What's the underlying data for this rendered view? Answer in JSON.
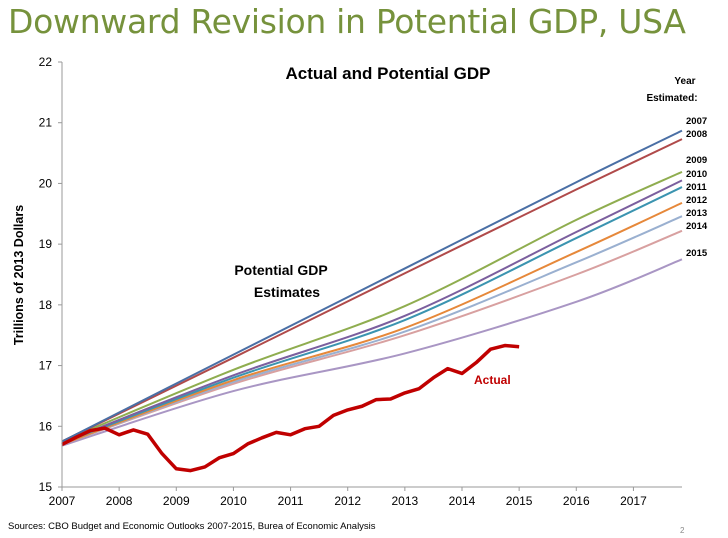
{
  "slide": {
    "title": "Downward Revision in Potential GDP, USA",
    "sources": "Sources:  CBO Budget and Economic Outlooks 2007-2015, Burea of Economic Analysis",
    "page_number": "2"
  },
  "chart_data": {
    "type": "line",
    "title": "Actual and Potential GDP",
    "ylabel": "Trillions of 2013 Dollars",
    "xlabel": "",
    "xlim": [
      2007,
      2017.85
    ],
    "ylim": [
      15,
      22
    ],
    "x_ticks": [
      "2007",
      "2008",
      "2009",
      "2010",
      "2011",
      "2012",
      "2013",
      "2014",
      "2015",
      "2016",
      "2017"
    ],
    "y_ticks": [
      "15",
      "16",
      "17",
      "18",
      "19",
      "20",
      "21",
      "22"
    ],
    "legend_header": [
      "Year",
      "Estimated:"
    ],
    "annotation_potential": [
      "Potential GDP",
      "Estimates"
    ],
    "series": [
      {
        "name": "2007",
        "color": "#4a6fa5",
        "x": [
          2007,
          2010,
          2013,
          2016,
          2017.85
        ],
        "y": [
          15.75,
          17.18,
          18.6,
          20.02,
          20.87
        ]
      },
      {
        "name": "2008",
        "color": "#b04a4a",
        "x": [
          2007,
          2010,
          2013,
          2016,
          2017.85
        ],
        "y": [
          15.75,
          17.13,
          18.52,
          19.9,
          20.73
        ]
      },
      {
        "name": "2009",
        "color": "#8fad4f",
        "x": [
          2007,
          2010,
          2013,
          2016,
          2017.85
        ],
        "y": [
          15.75,
          16.93,
          17.98,
          19.4,
          20.19
        ]
      },
      {
        "name": "2010",
        "color": "#7b5f9e",
        "x": [
          2007,
          2010,
          2013,
          2016,
          2017.85
        ],
        "y": [
          15.73,
          16.84,
          17.82,
          19.2,
          20.05
        ]
      },
      {
        "name": "2011",
        "color": "#3b94b0",
        "x": [
          2007,
          2010,
          2013,
          2016,
          2017.85
        ],
        "y": [
          15.72,
          16.8,
          17.75,
          19.1,
          19.94
        ]
      },
      {
        "name": "2012",
        "color": "#e6883a",
        "x": [
          2007,
          2010,
          2013,
          2016,
          2017.85
        ],
        "y": [
          15.7,
          16.76,
          17.62,
          18.87,
          19.68
        ]
      },
      {
        "name": "2013",
        "color": "#9ab0d0",
        "x": [
          2007,
          2010,
          2013,
          2016,
          2017.85
        ],
        "y": [
          15.7,
          16.73,
          17.56,
          18.7,
          19.46
        ]
      },
      {
        "name": "2014",
        "color": "#d8a0a0",
        "x": [
          2007,
          2010,
          2013,
          2016,
          2017.85
        ],
        "y": [
          15.7,
          16.7,
          17.5,
          18.5,
          19.22
        ]
      },
      {
        "name": "2015",
        "color": "#a996c4",
        "x": [
          2007,
          2010,
          2013,
          2016,
          2017.85
        ],
        "y": [
          15.68,
          16.58,
          17.2,
          18.05,
          18.75
        ]
      },
      {
        "name": "Actual",
        "color": "#c00000",
        "x": [
          2007,
          2007.25,
          2007.5,
          2007.75,
          2008,
          2008.25,
          2008.5,
          2008.75,
          2009,
          2009.25,
          2009.5,
          2009.75,
          2010,
          2010.25,
          2010.5,
          2010.75,
          2011,
          2011.25,
          2011.5,
          2011.75,
          2012,
          2012.25,
          2012.5,
          2012.75,
          2013,
          2013.25,
          2013.5,
          2013.75,
          2014,
          2014.25,
          2014.5,
          2014.75,
          2015
        ],
        "y": [
          15.7,
          15.82,
          15.93,
          15.97,
          15.86,
          15.94,
          15.87,
          15.55,
          15.3,
          15.27,
          15.33,
          15.48,
          15.55,
          15.71,
          15.81,
          15.9,
          15.86,
          15.96,
          16.0,
          16.18,
          16.27,
          16.33,
          16.44,
          16.45,
          16.55,
          16.62,
          16.8,
          16.95,
          16.87,
          17.05,
          17.27,
          17.33,
          17.31
        ]
      }
    ]
  }
}
